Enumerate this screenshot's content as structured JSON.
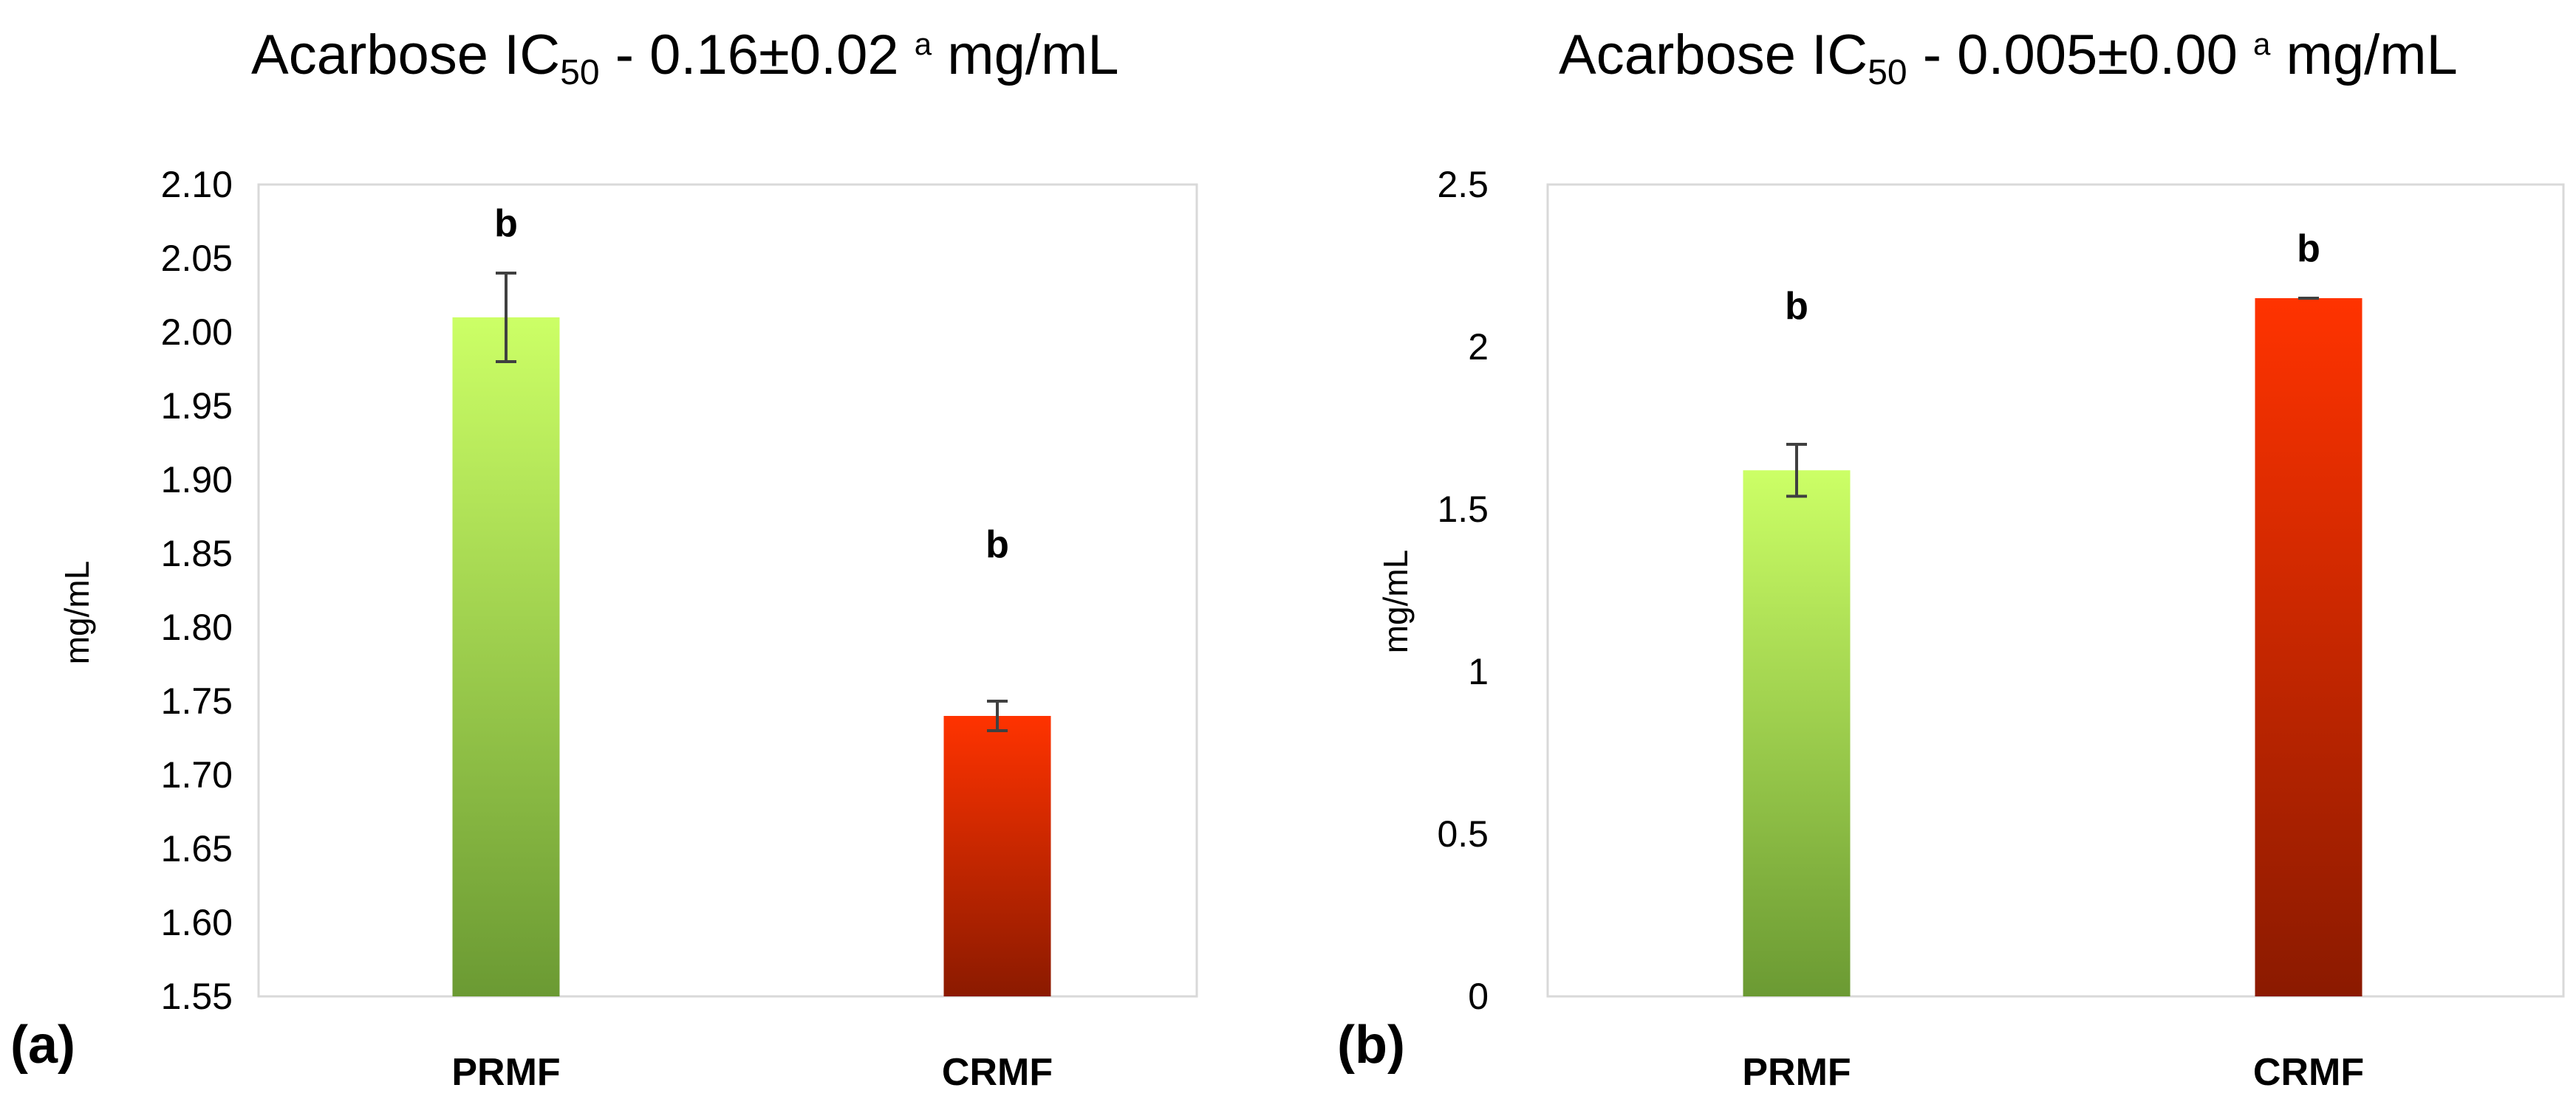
{
  "chart_data": [
    {
      "type": "bar",
      "panel_label": "(a)",
      "title": {
        "prefix": "Acarbose IC",
        "subscript": "50",
        "middle": " - 0.16±0.02 ",
        "superscript": "a",
        "suffix": " mg/mL"
      },
      "ylabel": "mg/mL",
      "ylim": [
        1.55,
        2.1
      ],
      "ticks": [
        "1.55",
        "1.60",
        "1.65",
        "1.70",
        "1.75",
        "1.80",
        "1.85",
        "1.90",
        "1.95",
        "2.00",
        "2.05",
        "2.10"
      ],
      "categories": [
        "PRMF",
        "CRMF"
      ],
      "values": [
        2.01,
        1.74
      ],
      "errors": [
        0.03,
        0.01
      ],
      "significance": [
        "b",
        "b"
      ],
      "colors": [
        [
          "#ccff66",
          "#6b9a33"
        ],
        [
          "#ff3300",
          "#8b1a00"
        ]
      ]
    },
    {
      "type": "bar",
      "panel_label": "(b)",
      "title": {
        "prefix": "Acarbose IC",
        "subscript": "50",
        "middle": " - 0.005±0.00 ",
        "superscript": "a",
        "suffix": " mg/mL"
      },
      "ylabel": "mg/mL",
      "ylim": [
        0,
        2.5
      ],
      "ticks": [
        "0",
        "0.5",
        "1",
        "1.5",
        "2",
        "2.5"
      ],
      "categories": [
        "PRMF",
        "CRMF"
      ],
      "values": [
        1.62,
        2.15
      ],
      "errors": [
        0.08,
        0.0
      ],
      "significance": [
        "b",
        "b"
      ],
      "colors": [
        [
          "#ccff66",
          "#6b9a33"
        ],
        [
          "#ff3300",
          "#8b1a00"
        ]
      ]
    }
  ]
}
